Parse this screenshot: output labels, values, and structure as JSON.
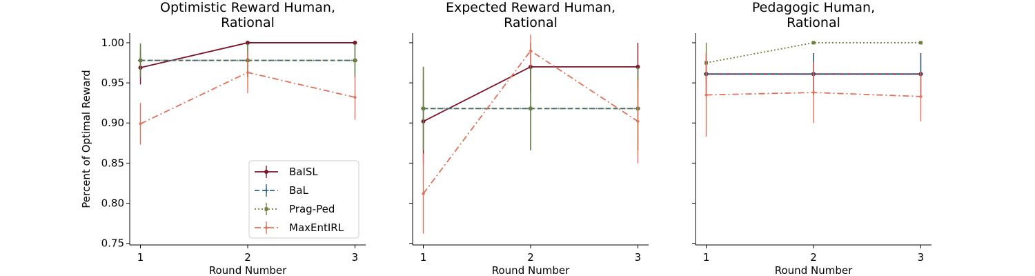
{
  "chart_data": [
    {
      "type": "line",
      "title": "Optimistic Reward Human,\nRational",
      "xlabel": "Round Number",
      "ylabel": "Percent of Optimal Reward",
      "x": [
        1,
        2,
        3
      ],
      "xlim": [
        0.9,
        3.1
      ],
      "ylim": [
        0.748,
        1.012
      ],
      "xticks": [
        "1",
        "2",
        "3"
      ],
      "yticks": [
        "0.75",
        "0.80",
        "0.85",
        "0.90",
        "0.95",
        "1.00"
      ],
      "legend": "lower-right",
      "series": [
        {
          "name": "BaISL",
          "values": [
            0.969,
            1.0,
            1.0
          ],
          "err": [
            0.021,
            0.0,
            0.0
          ],
          "color": "#7b1428",
          "dash": "solid",
          "marker": "circle"
        },
        {
          "name": "BaL",
          "values": [
            0.978,
            0.978,
            0.978
          ],
          "err": [
            0.021,
            0.021,
            0.021
          ],
          "color": "#2c5f8a",
          "dash": "dashed",
          "marker": "plus"
        },
        {
          "name": "Prag-Ped",
          "values": [
            0.978,
            0.978,
            0.978
          ],
          "err": [
            0.021,
            0.021,
            0.021
          ],
          "color": "#6b7f3a",
          "dash": "dotted",
          "marker": "square"
        },
        {
          "name": "MaxEntIRL",
          "values": [
            0.899,
            0.963,
            0.932
          ],
          "err": [
            0.026,
            0.026,
            0.028
          ],
          "color": "#e07058",
          "dash": "dashdot",
          "marker": "diamond"
        }
      ]
    },
    {
      "type": "line",
      "title": "Expected Reward Human,\nRational",
      "xlabel": "Round Number",
      "ylabel": "",
      "x": [
        1,
        2,
        3
      ],
      "xlim": [
        0.9,
        3.1
      ],
      "ylim": [
        0.748,
        1.012
      ],
      "xticks": [
        "1",
        "2",
        "3"
      ],
      "yticks": [],
      "legend": "none",
      "series": [
        {
          "name": "BaISL",
          "values": [
            0.902,
            0.97,
            0.97
          ],
          "err": [
            0.052,
            0.03,
            0.03
          ],
          "color": "#7b1428",
          "dash": "solid",
          "marker": "circle"
        },
        {
          "name": "BaL",
          "values": [
            0.918,
            0.918,
            0.918
          ],
          "err": [
            0.052,
            0.052,
            0.052
          ],
          "color": "#2c5f8a",
          "dash": "dashed",
          "marker": "plus"
        },
        {
          "name": "Prag-Ped",
          "values": [
            0.918,
            0.918,
            0.918
          ],
          "err": [
            0.052,
            0.052,
            0.052
          ],
          "color": "#6b7f3a",
          "dash": "dotted",
          "marker": "square"
        },
        {
          "name": "MaxEntIRL",
          "values": [
            0.812,
            0.99,
            0.902
          ],
          "err": [
            0.05,
            0.02,
            0.052
          ],
          "color": "#e07058",
          "dash": "dashdot",
          "marker": "diamond"
        }
      ]
    },
    {
      "type": "line",
      "title": "Pedagogic Human,\nRational",
      "xlabel": "Round Number",
      "ylabel": "",
      "x": [
        1,
        2,
        3
      ],
      "xlim": [
        0.9,
        3.1
      ],
      "ylim": [
        0.748,
        1.012
      ],
      "xticks": [
        "1",
        "2",
        "3"
      ],
      "yticks": [],
      "legend": "none",
      "series": [
        {
          "name": "BaISL",
          "values": [
            0.961,
            0.961,
            0.961
          ],
          "err": [
            0.026,
            0.026,
            0.026
          ],
          "color": "#7b1428",
          "dash": "solid",
          "marker": "circle"
        },
        {
          "name": "BaL",
          "values": [
            0.961,
            0.961,
            0.961
          ],
          "err": [
            0.026,
            0.026,
            0.026
          ],
          "color": "#2c5f8a",
          "dash": "dashed",
          "marker": "plus"
        },
        {
          "name": "Prag-Ped",
          "values": [
            0.975,
            1.0,
            1.0
          ],
          "err": [
            0.025,
            0.0,
            0.0
          ],
          "color": "#6b7f3a",
          "dash": "dotted",
          "marker": "square"
        },
        {
          "name": "MaxEntIRL",
          "values": [
            0.935,
            0.938,
            0.933
          ],
          "err": [
            0.052,
            0.038,
            0.031
          ],
          "color": "#e07058",
          "dash": "dashdot",
          "marker": "diamond"
        }
      ]
    }
  ]
}
